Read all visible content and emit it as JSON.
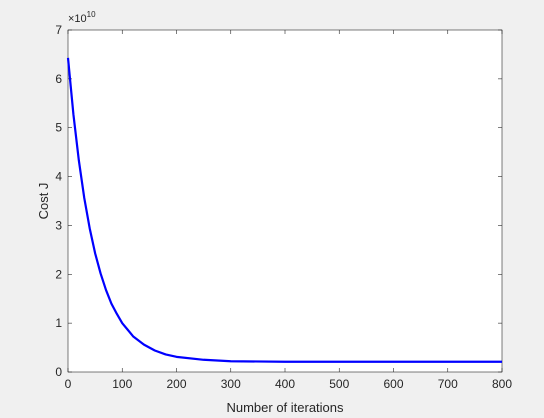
{
  "chart_data": {
    "type": "line",
    "x_label": "Number of iterations",
    "y_label": "Cost J",
    "y_scale_label": {
      "base": "×10",
      "exponent": "10"
    },
    "x": [
      0,
      10,
      20,
      30,
      40,
      50,
      60,
      70,
      80,
      90,
      100,
      120,
      140,
      160,
      180,
      200,
      250,
      300,
      400,
      500,
      600,
      700,
      800
    ],
    "series": [
      {
        "color": "#0000ff",
        "values": [
          6.43,
          5.27,
          4.33,
          3.56,
          2.94,
          2.43,
          2.02,
          1.68,
          1.4,
          1.19,
          1.0,
          0.73,
          0.56,
          0.44,
          0.36,
          0.31,
          0.25,
          0.22,
          0.21,
          0.21,
          0.21,
          0.21,
          0.21
        ]
      }
    ],
    "xlim": [
      0,
      800
    ],
    "xticks": [
      0,
      100,
      200,
      300,
      400,
      500,
      600,
      700,
      800
    ],
    "ylim": [
      0,
      7
    ],
    "yticks": [
      0,
      1,
      2,
      3,
      4,
      5,
      6,
      7
    ],
    "grid": false
  }
}
